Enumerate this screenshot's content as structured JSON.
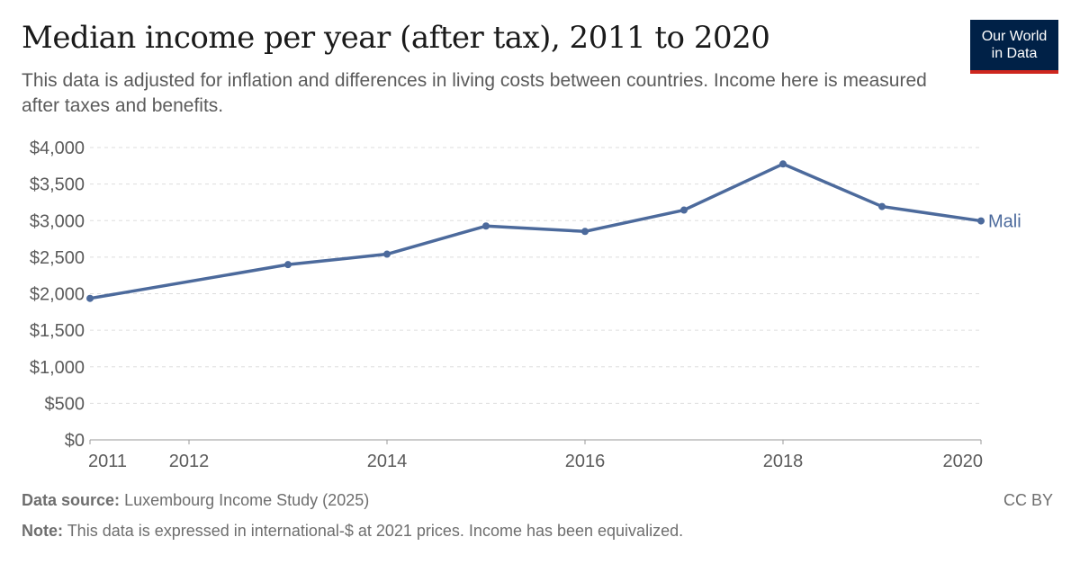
{
  "header": {
    "title": "Median income per year (after tax), 2011 to 2020",
    "subtitle": "This data is adjusted for inflation and differences in living costs between countries. Income here is measured after taxes and benefits.",
    "logo": "Our World in Data"
  },
  "footer": {
    "source_label": "Data source:",
    "source": "Luxembourg Income Study (2025)",
    "note_label": "Note:",
    "note": "This data is expressed in international-$ at 2021 prices. Income has been equivalized.",
    "license": "CC BY"
  },
  "colors": {
    "series": "#4c6a9c",
    "grid": "#dddddd",
    "text": "#5b5b5b"
  },
  "chart_data": {
    "type": "line",
    "title": "Median income per year (after tax), 2011 to 2020",
    "xlim": [
      2011,
      2020
    ],
    "ylim": [
      0,
      4000
    ],
    "grid": true,
    "x_ticks": [
      "2011",
      "2012",
      "2014",
      "2016",
      "2018",
      "2020"
    ],
    "y_ticks": [
      "$0",
      "$500",
      "$1,000",
      "$1,500",
      "$2,000",
      "$2,500",
      "$3,000",
      "$3,500",
      "$4,000"
    ],
    "series": [
      {
        "name": "Mali",
        "x": [
          2011,
          2013,
          2014,
          2015,
          2016,
          2017,
          2018,
          2019,
          2020
        ],
        "values": [
          1936,
          2398,
          2541,
          2926,
          2852,
          3144,
          3775,
          3193,
          2996
        ]
      }
    ]
  }
}
